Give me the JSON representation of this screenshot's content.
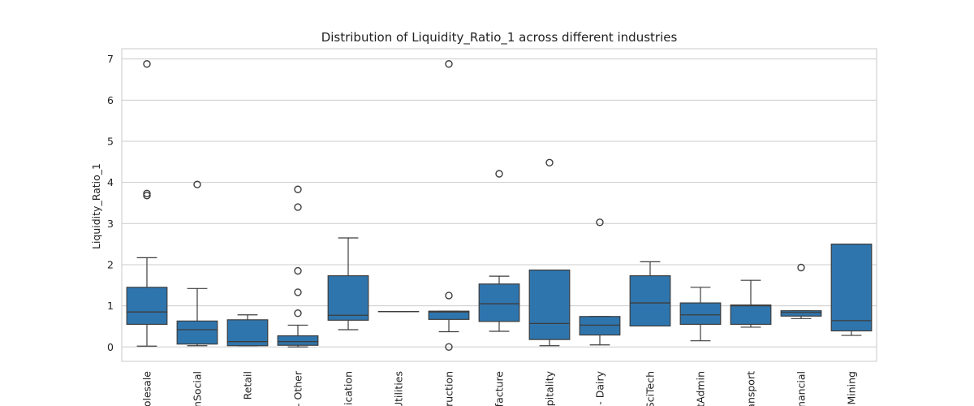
{
  "chart_data": {
    "type": "box",
    "title": "Distribution of Liquidity_Ratio_1 across different industries",
    "xlabel": "",
    "ylabel": "Liquidity_Ratio_1",
    "ylim": [
      -0.35,
      7.25
    ],
    "yticks": [
      0,
      1,
      2,
      3,
      4,
      5,
      6,
      7
    ],
    "grid": true,
    "color": "#2f75ad",
    "categories": [
      "olesale",
      "nSocial",
      "Retail",
      "- Other",
      "uication",
      "Utilities",
      "truction",
      "facture",
      "spitality",
      "- Dairy",
      "SciTech",
      "tAdmin",
      "ansport",
      "nancial",
      "Mining"
    ],
    "boxes": [
      {
        "q1": 0.55,
        "median": 0.85,
        "q3": 1.45,
        "whisker_low": 0.02,
        "whisker_high": 2.17,
        "outliers": [
          3.68,
          3.73,
          6.88
        ]
      },
      {
        "q1": 0.07,
        "median": 0.42,
        "q3": 0.63,
        "whisker_low": 0.03,
        "whisker_high": 1.42,
        "outliers": [
          3.95
        ]
      },
      {
        "q1": 0.03,
        "median": 0.13,
        "q3": 0.66,
        "whisker_low": 0.03,
        "whisker_high": 0.78,
        "outliers": []
      },
      {
        "q1": 0.04,
        "median": 0.13,
        "q3": 0.27,
        "whisker_low": 0.0,
        "whisker_high": 0.53,
        "outliers": [
          0.82,
          1.33,
          1.85,
          3.4,
          3.83
        ]
      },
      {
        "q1": 0.65,
        "median": 0.77,
        "q3": 1.73,
        "whisker_low": 0.42,
        "whisker_high": 2.65,
        "outliers": []
      },
      {
        "q1": 0.86,
        "median": 0.86,
        "q3": 0.86,
        "whisker_low": 0.86,
        "whisker_high": 0.86,
        "outliers": []
      },
      {
        "q1": 0.67,
        "median": 0.85,
        "q3": 0.87,
        "whisker_low": 0.37,
        "whisker_high": 0.87,
        "outliers": [
          0.0,
          1.25,
          6.88
        ]
      },
      {
        "q1": 0.62,
        "median": 1.05,
        "q3": 1.53,
        "whisker_low": 0.38,
        "whisker_high": 1.72,
        "outliers": [
          4.21
        ]
      },
      {
        "q1": 0.18,
        "median": 0.57,
        "q3": 1.87,
        "whisker_low": 0.03,
        "whisker_high": 1.87,
        "outliers": [
          4.48
        ]
      },
      {
        "q1": 0.29,
        "median": 0.53,
        "q3": 0.74,
        "whisker_low": 0.05,
        "whisker_high": 0.74,
        "outliers": [
          3.03
        ]
      },
      {
        "q1": 0.51,
        "median": 1.07,
        "q3": 1.73,
        "whisker_low": 0.51,
        "whisker_high": 2.07,
        "outliers": []
      },
      {
        "q1": 0.55,
        "median": 0.78,
        "q3": 1.07,
        "whisker_low": 0.15,
        "whisker_high": 1.45,
        "outliers": []
      },
      {
        "q1": 0.55,
        "median": 1.0,
        "q3": 1.02,
        "whisker_low": 0.48,
        "whisker_high": 1.62,
        "outliers": []
      },
      {
        "q1": 0.75,
        "median": 0.84,
        "q3": 0.88,
        "whisker_low": 0.69,
        "whisker_high": 0.88,
        "outliers": [
          1.93
        ]
      },
      {
        "q1": 0.39,
        "median": 0.64,
        "q3": 2.5,
        "whisker_low": 0.28,
        "whisker_high": 2.5,
        "outliers": []
      }
    ]
  }
}
